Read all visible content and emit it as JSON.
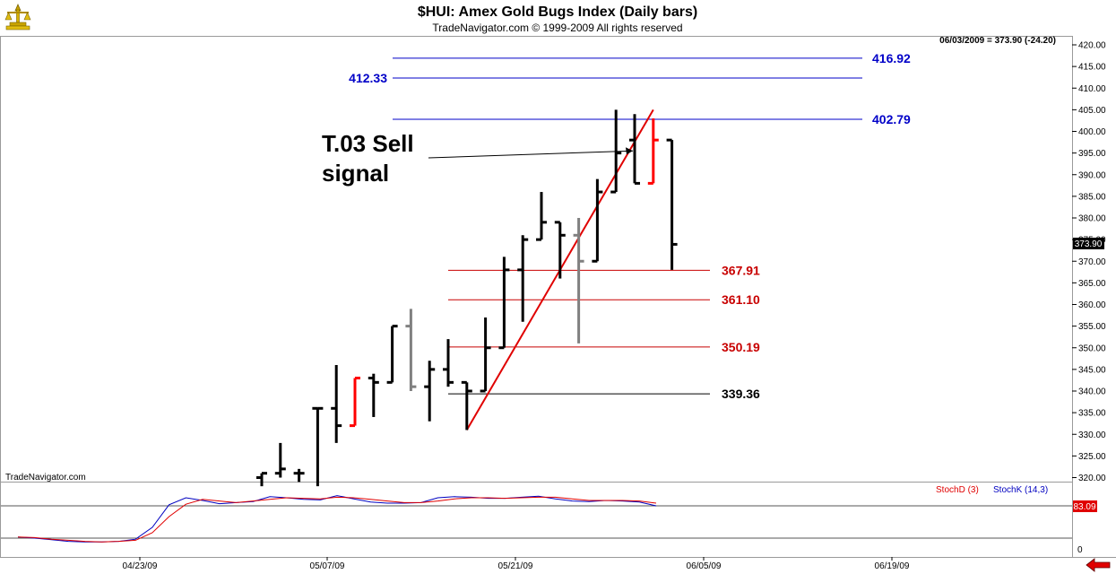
{
  "header": {
    "title": "$HUI:  Amex Gold Bugs Index  (Daily bars)",
    "subtitle": "TradeNavigator.com © 1999-2009 All rights reserved",
    "last_quote": "06/03/2009 = 373.90 (-24.20)",
    "watermark": "TradeNavigator.com"
  },
  "icons": {
    "logo": "trade-navigator-logo-icon",
    "nav": "back-arrow-icon"
  },
  "colors": {
    "up_bar": "#000000",
    "gray_bar": "#808080",
    "red_bar": "#ff0000",
    "blue_level": "#0000c8",
    "red_level": "#c80000",
    "stochD": "#e00000",
    "stochK": "#0000c0",
    "last_value_bg": "#000000",
    "stoch_value_bg": "#e00000"
  },
  "chart_data": {
    "type": "bar",
    "title": "$HUI:  Amex Gold Bugs Index  (Daily bars)",
    "ylim": [
      317,
      423
    ],
    "yticks": [
      320,
      325,
      330,
      335,
      340,
      345,
      350,
      355,
      360,
      365,
      370,
      375,
      380,
      385,
      390,
      395,
      400,
      405,
      410,
      415,
      420
    ],
    "x_labels": [
      "04/23/09",
      "05/07/09",
      "05/21/09",
      "06/05/09",
      "06/19/09"
    ],
    "last_value_label": "373.90",
    "bars": [
      {
        "i": 0,
        "open": 320,
        "high": 321,
        "low": 318,
        "close": 321,
        "color": "black"
      },
      {
        "i": 1,
        "open": 321,
        "high": 328,
        "low": 320,
        "close": 322,
        "color": "black"
      },
      {
        "i": 2,
        "open": 321,
        "high": 322,
        "low": 319,
        "close": 321,
        "color": "black"
      },
      {
        "i": 3,
        "open": 336,
        "high": 336,
        "low": 318,
        "close": 336,
        "color": "black"
      },
      {
        "i": 4,
        "open": 336,
        "high": 346,
        "low": 328,
        "close": 332,
        "color": "black"
      },
      {
        "i": 5,
        "open": 332,
        "high": 343,
        "low": 332,
        "close": 343,
        "color": "red"
      },
      {
        "i": 6,
        "open": 343,
        "high": 344,
        "low": 334,
        "close": 342,
        "color": "black"
      },
      {
        "i": 7,
        "open": 342,
        "high": 355,
        "low": 342,
        "close": 355,
        "color": "black"
      },
      {
        "i": 8,
        "open": 355,
        "high": 359,
        "low": 340,
        "close": 341,
        "color": "gray"
      },
      {
        "i": 9,
        "open": 341,
        "high": 347,
        "low": 333,
        "close": 345,
        "color": "black"
      },
      {
        "i": 10,
        "open": 345,
        "high": 352,
        "low": 341,
        "close": 342,
        "color": "black"
      },
      {
        "i": 11,
        "open": 342,
        "high": 342,
        "low": 331,
        "close": 340,
        "color": "black"
      },
      {
        "i": 12,
        "open": 340,
        "high": 357,
        "low": 340,
        "close": 350,
        "color": "black"
      },
      {
        "i": 13,
        "open": 350,
        "high": 371,
        "low": 350,
        "close": 368,
        "color": "black"
      },
      {
        "i": 14,
        "open": 368,
        "high": 376,
        "low": 356,
        "close": 375,
        "color": "black"
      },
      {
        "i": 15,
        "open": 375,
        "high": 386,
        "low": 375,
        "close": 379,
        "color": "black"
      },
      {
        "i": 16,
        "open": 379,
        "high": 379,
        "low": 366,
        "close": 376,
        "color": "black"
      },
      {
        "i": 17,
        "open": 376,
        "high": 380,
        "low": 351,
        "close": 370,
        "color": "gray"
      },
      {
        "i": 18,
        "open": 370,
        "high": 389,
        "low": 370,
        "close": 386,
        "color": "black"
      },
      {
        "i": 19,
        "open": 386,
        "high": 405,
        "low": 386,
        "close": 395,
        "color": "black"
      },
      {
        "i": 20,
        "open": 398,
        "high": 404,
        "low": 388,
        "close": 388,
        "color": "black"
      },
      {
        "i": 21,
        "open": 388,
        "high": 403,
        "low": 388,
        "close": 398,
        "color": "red"
      },
      {
        "i": 22,
        "open": 398,
        "high": 398,
        "low": 368,
        "close": 373.9,
        "color": "black"
      }
    ],
    "levels": [
      {
        "value": 416.92,
        "label": "416.92",
        "color": "blue",
        "label_side": "right"
      },
      {
        "value": 412.33,
        "label": "412.33",
        "color": "blue",
        "label_side": "left"
      },
      {
        "value": 402.79,
        "label": "402.79",
        "color": "blue",
        "label_side": "right"
      },
      {
        "value": 367.91,
        "label": "367.91",
        "color": "red",
        "label_side": "right"
      },
      {
        "value": 361.1,
        "label": "361.10",
        "color": "red",
        "label_side": "right"
      },
      {
        "value": 350.19,
        "label": "350.19",
        "color": "red",
        "label_side": "right"
      },
      {
        "value": 339.36,
        "label": "339.36",
        "color": "black",
        "label_side": "right"
      }
    ],
    "trendline": {
      "from_bar": 11,
      "from_value": 331,
      "to_bar": 21,
      "to_value": 405
    },
    "annotation": {
      "line1": "T.03 Sell",
      "line2": "signal",
      "arrow_to_bar": 20,
      "arrow_to_value": 395.5
    },
    "stochastic": {
      "legend_d": "StochD (3)",
      "legend_k": "StochK (14,3)",
      "value_label": "83.09",
      "axis_label": "0",
      "ylim": [
        0,
        100
      ],
      "reference_levels": [
        80,
        20
      ],
      "x": [
        0,
        1,
        2,
        3,
        4,
        5,
        6,
        7,
        8,
        9,
        10,
        11,
        12,
        13,
        14,
        15,
        16,
        17,
        18,
        19,
        20,
        21,
        22,
        23,
        24,
        25,
        26,
        27,
        28,
        29,
        30,
        31,
        32,
        33,
        34,
        35,
        36,
        37,
        38
      ],
      "k": [
        22,
        20,
        17,
        14,
        13,
        13,
        14,
        18,
        40,
        82,
        95,
        90,
        84,
        86,
        88,
        97,
        95,
        92,
        91,
        99,
        93,
        87,
        85,
        85,
        86,
        95,
        97,
        96,
        94,
        94,
        96,
        98,
        93,
        89,
        88,
        90,
        89,
        87,
        80
      ],
      "d": [
        22,
        21,
        18,
        16,
        14,
        13,
        14,
        16,
        30,
        60,
        83,
        92,
        89,
        86,
        89,
        92,
        95,
        94,
        93,
        96,
        95,
        92,
        89,
        86,
        86,
        89,
        93,
        95,
        95,
        94,
        95,
        96,
        96,
        93,
        90,
        90,
        90,
        89,
        85
      ]
    }
  }
}
